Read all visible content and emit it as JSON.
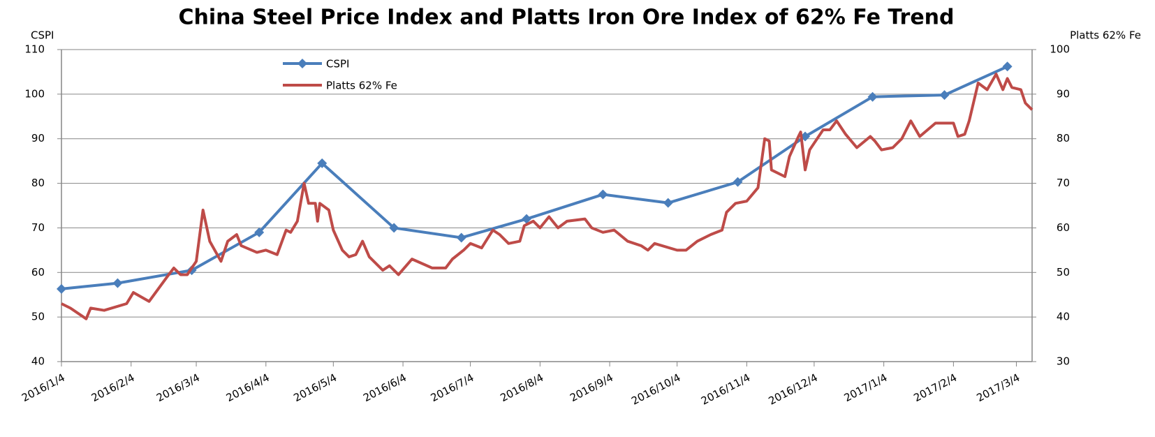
{
  "chart_data": {
    "type": "line",
    "title": "China Steel Price Index and Platts Iron Ore Index of 62% Fe Trend",
    "ylabel": "CSPI",
    "y2label": "Platts 62% Fe",
    "ylim": [
      40,
      110
    ],
    "yticks": [
      40,
      50,
      60,
      70,
      80,
      90,
      100,
      110
    ],
    "y2lim": [
      30,
      100
    ],
    "y2ticks": [
      30,
      40,
      50,
      60,
      70,
      80,
      90,
      100
    ],
    "xlim": [
      "2016/1/4",
      "2017/3/11"
    ],
    "xticks": [
      "2016/1/4",
      "2016/2/4",
      "2016/3/4",
      "2016/4/4",
      "2016/5/4",
      "2016/6/4",
      "2016/7/4",
      "2016/8/4",
      "2016/9/4",
      "2016/10/4",
      "2016/11/4",
      "2016/12/4",
      "2017/1/4",
      "2017/2/4",
      "2017/3/4"
    ],
    "grid": true,
    "legend": "top",
    "series": [
      {
        "name": "CSPI",
        "color": "#4a7ebb",
        "marker": "diamond",
        "x": [
          "2016/1/4",
          "2016/1/29",
          "2016/3/2",
          "2016/4/1",
          "2016/4/29",
          "2016/5/31",
          "2016/6/30",
          "2016/7/29",
          "2016/9/1",
          "2016/9/30",
          "2016/10/31",
          "2016/11/30",
          "2016/12/30",
          "2017/1/31",
          "2017/2/28"
        ],
        "values": [
          56.3,
          57.6,
          60.5,
          69.0,
          84.5,
          70.0,
          67.8,
          72.0,
          77.5,
          75.6,
          80.3,
          90.5,
          99.4,
          99.8,
          106.2
        ]
      },
      {
        "name": "Platts 62% Fe",
        "color": "#be4b48",
        "axis": "y2",
        "x": [
          "2016/1/4",
          "2016/1/8",
          "2016/1/15",
          "2016/1/17",
          "2016/1/23",
          "2016/2/2",
          "2016/2/5",
          "2016/2/12",
          "2016/2/20",
          "2016/2/23",
          "2016/2/26",
          "2016/2/29",
          "2016/3/4",
          "2016/3/7",
          "2016/3/10",
          "2016/3/15",
          "2016/3/18",
          "2016/3/22",
          "2016/3/24",
          "2016/3/31",
          "2016/4/4",
          "2016/4/9",
          "2016/4/13",
          "2016/4/15",
          "2016/4/18",
          "2016/4/21",
          "2016/4/23",
          "2016/4/26",
          "2016/4/27",
          "2016/4/28",
          "2016/5/2",
          "2016/5/4",
          "2016/5/8",
          "2016/5/11",
          "2016/5/14",
          "2016/5/17",
          "2016/5/20",
          "2016/5/26",
          "2016/5/29",
          "2016/6/2",
          "2016/6/8",
          "2016/6/17",
          "2016/6/23",
          "2016/6/26",
          "2016/7/1",
          "2016/7/4",
          "2016/7/9",
          "2016/7/14",
          "2016/7/17",
          "2016/7/21",
          "2016/7/26",
          "2016/7/28",
          "2016/8/1",
          "2016/8/4",
          "2016/8/8",
          "2016/8/12",
          "2016/8/16",
          "2016/8/24",
          "2016/8/27",
          "2016/9/1",
          "2016/9/6",
          "2016/9/12",
          "2016/9/18",
          "2016/9/21",
          "2016/9/24",
          "2016/10/4",
          "2016/10/8",
          "2016/10/13",
          "2016/10/19",
          "2016/10/24",
          "2016/10/26",
          "2016/10/30",
          "2016/11/4",
          "2016/11/9",
          "2016/11/12",
          "2016/11/14",
          "2016/11/15",
          "2016/11/21",
          "2016/11/23",
          "2016/11/27",
          "2016/11/28",
          "2016/11/30",
          "2016/12/2",
          "2016/12/8",
          "2016/12/11",
          "2016/12/14",
          "2016/12/18",
          "2016/12/23",
          "2016/12/29",
          "2016/12/31",
          "2017/1/3",
          "2017/1/8",
          "2017/1/12",
          "2017/1/16",
          "2017/1/20",
          "2017/1/27",
          "2017/2/4",
          "2017/2/6",
          "2017/2/9",
          "2017/2/11",
          "2017/2/15",
          "2017/2/19",
          "2017/2/23",
          "2017/2/26",
          "2017/2/28",
          "2017/3/2",
          "2017/3/6",
          "2017/3/8",
          "2017/3/11"
        ],
        "values": [
          43,
          42,
          39.6,
          42,
          41.5,
          43,
          45.5,
          43.5,
          49,
          51,
          49.5,
          49.5,
          52.5,
          64,
          57,
          52.5,
          57,
          58.5,
          56,
          54.5,
          55,
          54,
          59.5,
          59,
          61.5,
          70,
          65.5,
          65.5,
          61.5,
          65.5,
          64,
          59.5,
          55,
          53.5,
          54,
          57,
          53.5,
          50.5,
          51.5,
          49.5,
          53,
          51,
          51,
          53,
          55,
          56.5,
          55.5,
          59.5,
          58.5,
          56.5,
          57,
          60.5,
          61.5,
          60,
          62.5,
          60,
          61.5,
          62,
          60,
          59,
          59.5,
          57,
          56,
          55,
          56.5,
          55,
          55,
          57,
          58.5,
          59.5,
          63.5,
          65.5,
          66,
          69,
          80,
          79.5,
          73,
          71.5,
          76,
          80.5,
          81.5,
          73,
          77.5,
          82,
          82,
          84,
          81,
          78,
          80.5,
          79.5,
          77.5,
          78,
          80,
          84,
          80.5,
          83.5,
          83.5,
          80.5,
          81,
          84,
          92.5,
          91,
          94.5,
          91,
          93.5,
          91.5,
          91,
          88,
          86.5
        ]
      }
    ]
  }
}
